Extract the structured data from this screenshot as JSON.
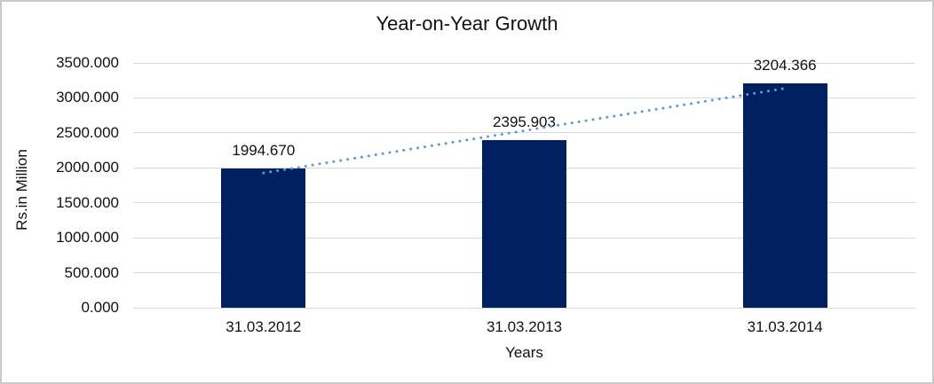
{
  "chart_data": {
    "type": "bar",
    "title": "Year-on-Year Growth",
    "xlabel": "Years",
    "ylabel": "Rs.in Million",
    "categories": [
      "31.03.2012",
      "31.03.2013",
      "31.03.2014"
    ],
    "values": [
      1994.67,
      2395.903,
      3204.366
    ],
    "data_labels": [
      "1994.670",
      "2395.903",
      "3204.366"
    ],
    "y_ticks": [
      "0.000",
      "500.000",
      "1000.000",
      "1500.000",
      "2000.000",
      "2500.000",
      "3000.000",
      "3500.000"
    ],
    "ylim": [
      0,
      3500
    ],
    "grid": true,
    "legend_position": "none",
    "bar_color": "#002060",
    "gridline_color": "#d9d9d9",
    "trendline": {
      "kind": "linear",
      "style": "dotted",
      "color": "#5B9BD5"
    },
    "frame_color": "#c9c9c9",
    "text_color": "#111111"
  }
}
